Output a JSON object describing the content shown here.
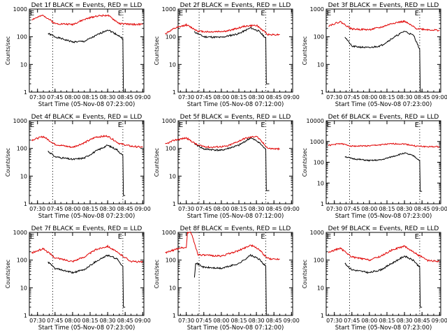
{
  "colors": {
    "events": "#000000",
    "lld": "#e00000",
    "axis": "#000000",
    "background": "#ffffff"
  },
  "chart_data": [
    {
      "type": "line",
      "title": "Det 1f BLACK = Events, RED = LLD",
      "xlabel": "Start Time (05-Nov-08 07:23:00)",
      "ylabel": "Counts/sec",
      "xticks": [
        "07:30",
        "07:45",
        "08:00",
        "08:15",
        "08:30",
        "08:45",
        "09:00"
      ],
      "yticks": [
        "1",
        "10",
        "100",
        "1000"
      ],
      "ylim": [
        1,
        1000
      ],
      "yscale": "log",
      "markers": [
        "07:43",
        "08:43"
      ],
      "flag_label": "E",
      "series": [
        {
          "name": "Events",
          "color": "#000000",
          "x": [
            "07:39",
            "07:45",
            "08:00",
            "08:10",
            "08:20",
            "08:30",
            "08:38",
            "08:43",
            "08:45"
          ],
          "y": [
            130,
            100,
            65,
            68,
            110,
            180,
            120,
            85,
            1
          ]
        },
        {
          "name": "LLD",
          "color": "#e00000",
          "x": [
            "07:25",
            "07:35",
            "07:45",
            "08:00",
            "08:10",
            "08:20",
            "08:30",
            "08:40",
            "08:50",
            "09:00"
          ],
          "y": [
            420,
            600,
            300,
            280,
            420,
            560,
            600,
            300,
            280,
            280
          ]
        }
      ]
    },
    {
      "type": "line",
      "title": "Det 2f BLACK = Events, RED = LLD",
      "xlabel": "Start Time (05-Nov-08 07:12:00)",
      "ylabel": "Counts/sec",
      "xticks": [
        "07:30",
        "07:45",
        "08:00",
        "08:15",
        "08:30",
        "08:45",
        "09:00"
      ],
      "yticks": [
        "1",
        "10",
        "100",
        "1000"
      ],
      "ylim": [
        1,
        1000
      ],
      "yscale": "log",
      "markers": [
        "07:41",
        "08:38"
      ],
      "flag_label": "E",
      "series": [
        {
          "name": "Events",
          "color": "#000000",
          "x": [
            "07:37",
            "07:45",
            "08:00",
            "08:15",
            "08:25",
            "08:32",
            "08:38",
            "08:41"
          ],
          "y": [
            150,
            100,
            95,
            130,
            210,
            160,
            90,
            2
          ]
        },
        {
          "name": "LLD",
          "color": "#e00000",
          "x": [
            "07:12",
            "07:20",
            "07:30",
            "07:40",
            "07:50",
            "08:05",
            "08:20",
            "08:30",
            "08:40",
            "08:50"
          ],
          "y": [
            130,
            200,
            270,
            160,
            150,
            160,
            240,
            260,
            120,
            120
          ]
        }
      ]
    },
    {
      "type": "line",
      "title": "Det 3f BLACK = Events, RED = LLD",
      "xlabel": "Start Time (05-Nov-08 07:23:00)",
      "ylabel": "Counts/sec",
      "xticks": [
        "07:30",
        "07:45",
        "08:00",
        "08:15",
        "08:30",
        "08:45",
        "09:00"
      ],
      "yticks": [
        "1",
        "10",
        "100",
        "1000"
      ],
      "ylim": [
        1,
        1000
      ],
      "yscale": "log",
      "markers": [
        "07:43",
        "08:43"
      ],
      "flag_label": "E",
      "series": [
        {
          "name": "Events",
          "color": "#000000",
          "x": [
            "07:39",
            "07:45",
            "08:00",
            "08:10",
            "08:20",
            "08:30",
            "08:38",
            "08:43",
            "08:45"
          ],
          "y": [
            100,
            45,
            40,
            48,
            90,
            160,
            110,
            35,
            1
          ]
        },
        {
          "name": "LLD",
          "color": "#e00000",
          "x": [
            "07:25",
            "07:35",
            "07:45",
            "08:00",
            "08:10",
            "08:20",
            "08:30",
            "08:40",
            "08:50",
            "09:00"
          ],
          "y": [
            250,
            350,
            190,
            180,
            220,
            310,
            360,
            200,
            180,
            170
          ]
        }
      ]
    },
    {
      "type": "line",
      "title": "Det 4f BLACK = Events, RED = LLD",
      "xlabel": "Start Time (05-Nov-08 07:23:00)",
      "ylabel": "Counts/sec",
      "xticks": [
        "07:30",
        "07:45",
        "08:00",
        "08:15",
        "08:30",
        "08:45",
        "09:00"
      ],
      "yticks": [
        "1",
        "10",
        "100",
        "1000"
      ],
      "ylim": [
        1,
        1000
      ],
      "yscale": "log",
      "markers": [
        "07:43",
        "08:43"
      ],
      "flag_label": "E",
      "series": [
        {
          "name": "Events",
          "color": "#000000",
          "x": [
            "07:39",
            "07:45",
            "08:00",
            "08:10",
            "08:20",
            "08:30",
            "08:38",
            "08:43",
            "08:45"
          ],
          "y": [
            80,
            50,
            40,
            45,
            80,
            130,
            90,
            55,
            2
          ]
        },
        {
          "name": "LLD",
          "color": "#e00000",
          "x": [
            "07:25",
            "07:35",
            "07:45",
            "08:00",
            "08:10",
            "08:20",
            "08:30",
            "08:40",
            "08:50",
            "09:00"
          ],
          "y": [
            200,
            270,
            140,
            110,
            160,
            260,
            280,
            150,
            120,
            110
          ]
        }
      ]
    },
    {
      "type": "line",
      "title": "Det 5f BLACK = Events, RED = LLD",
      "xlabel": "Start Time (05-Nov-08 07:12:00)",
      "ylabel": "Counts/sec",
      "xticks": [
        "07:30",
        "07:45",
        "08:00",
        "08:15",
        "08:30",
        "08:45",
        "09:00"
      ],
      "yticks": [
        "1",
        "10",
        "100",
        "1000"
      ],
      "ylim": [
        1,
        1000
      ],
      "yscale": "log",
      "markers": [
        "07:41",
        "08:38"
      ],
      "flag_label": "E",
      "series": [
        {
          "name": "Events",
          "color": "#000000",
          "x": [
            "07:37",
            "07:45",
            "08:00",
            "08:15",
            "08:25",
            "08:32",
            "08:38",
            "08:41"
          ],
          "y": [
            150,
            95,
            85,
            130,
            240,
            170,
            90,
            3
          ]
        },
        {
          "name": "LLD",
          "color": "#e00000",
          "x": [
            "07:12",
            "07:20",
            "07:30",
            "07:40",
            "07:50",
            "08:05",
            "08:20",
            "08:30",
            "08:40",
            "08:50"
          ],
          "y": [
            140,
            200,
            240,
            130,
            110,
            120,
            230,
            280,
            100,
            95
          ]
        }
      ]
    },
    {
      "type": "line",
      "title": "Det 6f BLACK = Events, RED = LLD",
      "xlabel": "Start Time (05-Nov-08 07:23:00)",
      "ylabel": "Counts/sec",
      "xticks": [
        "07:30",
        "07:45",
        "08:00",
        "08:15",
        "08:30",
        "08:45",
        "09:00"
      ],
      "yticks": [
        "1",
        "10",
        "100",
        "1000",
        "10000"
      ],
      "ylim": [
        1,
        10000
      ],
      "yscale": "log",
      "markers": [
        "07:43",
        "08:43"
      ],
      "flag_label": "E",
      "series": [
        {
          "name": "Events",
          "color": "#000000",
          "x": [
            "07:39",
            "07:45",
            "08:00",
            "08:10",
            "08:20",
            "08:30",
            "08:38",
            "08:43",
            "08:45"
          ],
          "y": [
            190,
            150,
            120,
            130,
            190,
            280,
            200,
            120,
            4
          ]
        },
        {
          "name": "LLD",
          "color": "#e00000",
          "x": [
            "07:25",
            "07:35",
            "07:45",
            "08:00",
            "08:10",
            "08:20",
            "08:30",
            "08:40",
            "08:50",
            "09:00"
          ],
          "y": [
            650,
            800,
            600,
            620,
            700,
            780,
            760,
            600,
            560,
            560
          ]
        }
      ]
    },
    {
      "type": "line",
      "title": "Det 7f BLACK = Events, RED = LLD",
      "xlabel": "Start Time (05-Nov-08 07:23:00)",
      "ylabel": "Counts/sec",
      "xticks": [
        "07:30",
        "07:45",
        "08:00",
        "08:15",
        "08:30",
        "08:45",
        "09:00"
      ],
      "yticks": [
        "1",
        "10",
        "100",
        "1000"
      ],
      "ylim": [
        1,
        1000
      ],
      "yscale": "log",
      "markers": [
        "07:43",
        "08:43"
      ],
      "flag_label": "E",
      "series": [
        {
          "name": "Events",
          "color": "#000000",
          "x": [
            "07:39",
            "07:45",
            "08:00",
            "08:10",
            "08:20",
            "08:30",
            "08:38",
            "08:43",
            "08:45"
          ],
          "y": [
            85,
            50,
            35,
            45,
            90,
            150,
            110,
            60,
            2
          ]
        },
        {
          "name": "LLD",
          "color": "#e00000",
          "x": [
            "07:25",
            "07:35",
            "07:45",
            "08:00",
            "08:10",
            "08:20",
            "08:30",
            "08:40",
            "08:50",
            "09:00"
          ],
          "y": [
            180,
            260,
            120,
            90,
            130,
            240,
            320,
            170,
            90,
            85
          ]
        }
      ]
    },
    {
      "type": "line",
      "title": "Det 8f BLACK = Events, RED = LLD",
      "xlabel": "Start Time (05-Nov-08 07:12:00)",
      "ylabel": "Counts/sec",
      "xticks": [
        "07:30",
        "07:45",
        "08:00",
        "08:15",
        "08:30",
        "08:45",
        "09:00"
      ],
      "yticks": [
        "1",
        "10",
        "100",
        "1000"
      ],
      "ylim": [
        1,
        1000
      ],
      "yscale": "log",
      "markers": [
        "07:41",
        "08:38"
      ],
      "flag_label": "E",
      "series": [
        {
          "name": "Events",
          "color": "#000000",
          "x": [
            "07:37",
            "07:38",
            "07:45",
            "08:00",
            "08:15",
            "08:25",
            "08:32",
            "08:38",
            "08:41"
          ],
          "y": [
            25,
            80,
            55,
            50,
            75,
            150,
            110,
            60,
            1
          ]
        },
        {
          "name": "LLD",
          "color": "#e00000",
          "x": [
            "07:12",
            "07:25",
            "07:30",
            "07:31",
            "07:34",
            "07:38",
            "07:40",
            "07:45",
            "08:00",
            "08:15",
            "08:25",
            "08:32",
            "08:38",
            "08:41",
            "08:50"
          ],
          "y": [
            180,
            280,
            280,
            1000,
            1000,
            300,
            160,
            150,
            140,
            220,
            350,
            250,
            130,
            110,
            110
          ]
        }
      ]
    },
    {
      "type": "line",
      "title": "Det 9f BLACK = Events, RED = LLD",
      "xlabel": "Start Time (05-Nov-08 07:23:00)",
      "ylabel": "Counts/sec",
      "xticks": [
        "07:30",
        "07:45",
        "08:00",
        "08:15",
        "08:30",
        "08:45",
        "09:00"
      ],
      "yticks": [
        "1",
        "10",
        "100",
        "1000"
      ],
      "ylim": [
        1,
        1000
      ],
      "yscale": "log",
      "markers": [
        "07:43",
        "08:43"
      ],
      "flag_label": "E",
      "series": [
        {
          "name": "Events",
          "color": "#000000",
          "x": [
            "07:39",
            "07:45",
            "08:00",
            "08:10",
            "08:20",
            "08:30",
            "08:38",
            "08:43",
            "08:45"
          ],
          "y": [
            75,
            45,
            35,
            45,
            80,
            140,
            95,
            55,
            2
          ]
        },
        {
          "name": "LLD",
          "color": "#e00000",
          "x": [
            "07:25",
            "07:35",
            "07:45",
            "08:00",
            "08:10",
            "08:20",
            "08:30",
            "08:40",
            "08:50",
            "09:00"
          ],
          "y": [
            190,
            270,
            130,
            100,
            140,
            240,
            320,
            170,
            95,
            90
          ]
        }
      ]
    }
  ]
}
